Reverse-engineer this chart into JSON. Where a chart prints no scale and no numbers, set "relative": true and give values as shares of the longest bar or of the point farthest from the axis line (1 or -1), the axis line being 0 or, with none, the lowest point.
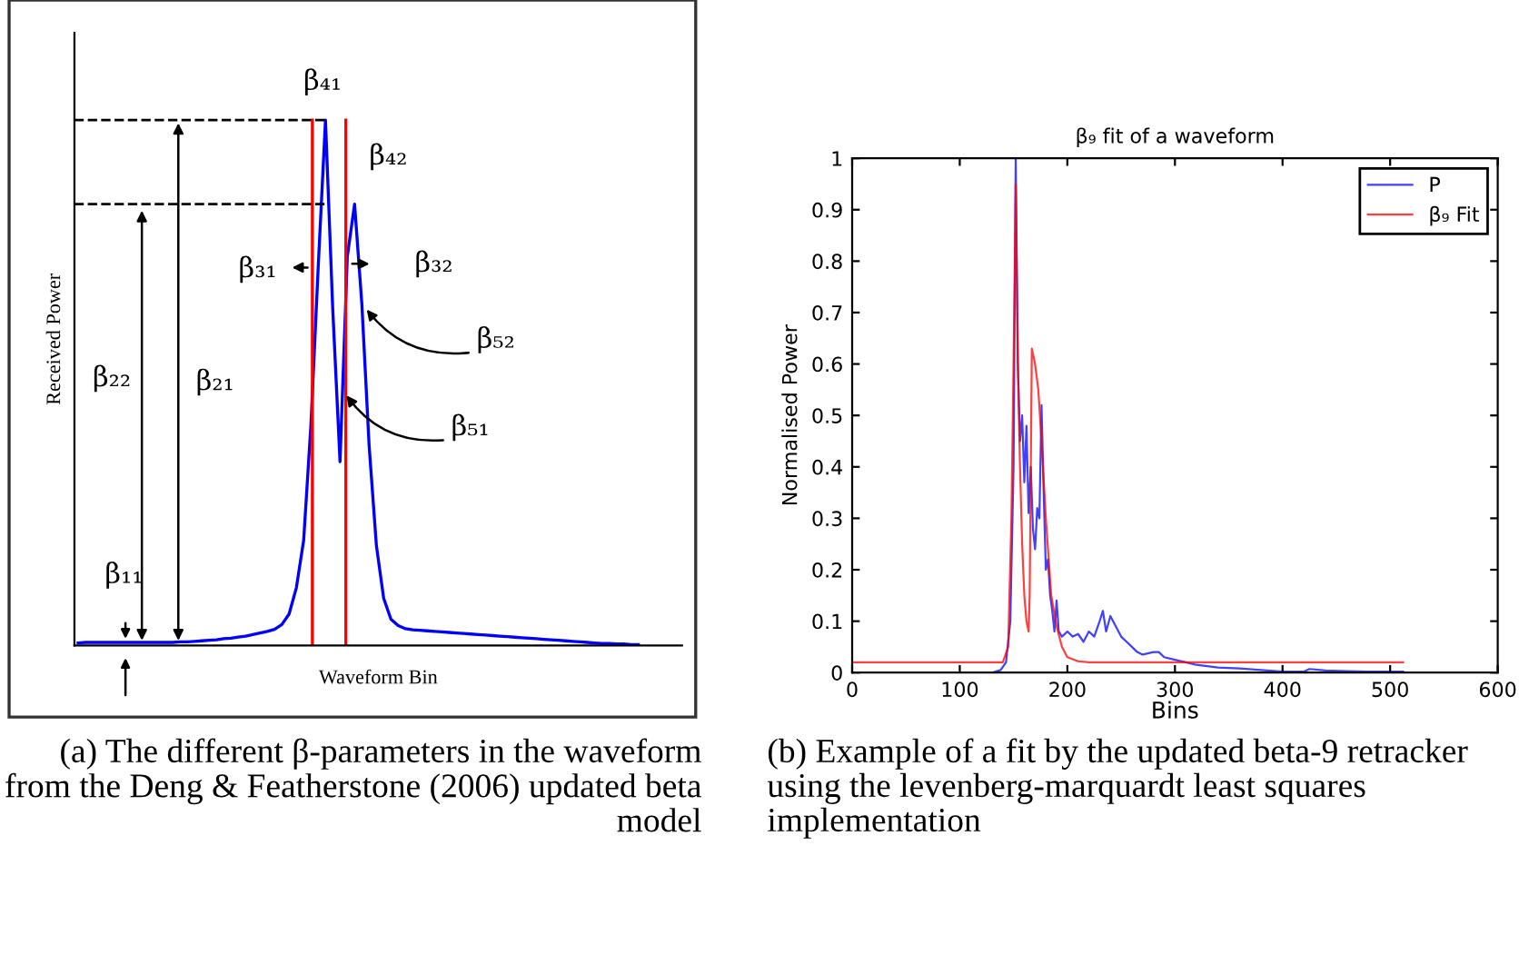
{
  "chart_data": [
    {
      "type": "line",
      "relative": true,
      "xlabel": "Waveform Bin",
      "ylabel": "Received Power",
      "color": "#0000ff",
      "grid": false,
      "categories": [
        null,
        null,
        null,
        null,
        null,
        null,
        null,
        null,
        null,
        null,
        null,
        null,
        null,
        null,
        null,
        null,
        null,
        null,
        null,
        null,
        null,
        null,
        null,
        null,
        null,
        null,
        null,
        null,
        null,
        null,
        null,
        null,
        null,
        null,
        null,
        null,
        null,
        null,
        null,
        null,
        null,
        null,
        null,
        null,
        null,
        null,
        null,
        null,
        null,
        null,
        null,
        null,
        null,
        null,
        null,
        null,
        null,
        null,
        null,
        null,
        null,
        null,
        null,
        null,
        null,
        null,
        null,
        null,
        null,
        null,
        null,
        null,
        null,
        null,
        null,
        null,
        null,
        null
      ],
      "values": [
        0.005,
        0.006,
        0.006,
        0.006,
        0.006,
        0.006,
        0.006,
        0.006,
        0.006,
        0.006,
        0.006,
        0.006,
        0.006,
        0.006,
        0.007,
        0.007,
        0.008,
        0.009,
        0.01,
        0.011,
        0.013,
        0.014,
        0.016,
        0.018,
        0.021,
        0.024,
        0.027,
        0.031,
        0.04,
        0.06,
        0.11,
        0.2,
        0.42,
        0.72,
        1.0,
        0.64,
        0.35,
        0.74,
        0.84,
        0.65,
        0.38,
        0.19,
        0.09,
        0.05,
        0.038,
        0.032,
        0.03,
        0.029,
        0.028,
        0.027,
        0.026,
        0.025,
        0.024,
        0.023,
        0.022,
        0.021,
        0.02,
        0.019,
        0.018,
        0.017,
        0.016,
        0.015,
        0.014,
        0.013,
        0.012,
        0.011,
        0.01,
        0.009,
        0.008,
        0.007,
        0.006,
        0.005,
        0.004,
        0.004,
        0.003,
        0.003,
        0.002,
        0.002
      ],
      "ref_lines": [
        {
          "axis": "y",
          "value": 1.0,
          "color": "#000000",
          "line_style": "dashed"
        },
        {
          "axis": "y",
          "value": 0.84,
          "color": "#000000",
          "line_style": "dashed"
        }
      ],
      "annotations": [
        "β₄₁",
        "β₄₂",
        "β₃₁",
        "β₃₂",
        "β₅₂",
        "β₅₁",
        "β₂₂",
        "β₂₁",
        "β₁₁",
        "(a) The different β-parameters in the waveform from the Deng & Featherstone (2006) updated beta model"
      ]
    },
    {
      "type": "line",
      "title": "β₉ fit of a waveform",
      "xlabel": "Bins",
      "ylabel": "Normalised Power",
      "grid": false,
      "legend": "top right",
      "xlim": [
        0,
        600
      ],
      "xticks": [
        0,
        100,
        200,
        300,
        400,
        500,
        600
      ],
      "ylim": [
        0,
        1
      ],
      "yticks": [
        0,
        0.1,
        0.2,
        0.3,
        0.4,
        0.5,
        0.6,
        0.7,
        0.8,
        0.9,
        1
      ],
      "series": [
        {
          "name": "P",
          "color": "#0000ff",
          "x": [
            0,
            130,
            138,
            143,
            147,
            150,
            152,
            154,
            156,
            158,
            160,
            162,
            164,
            166,
            168,
            170,
            172,
            174,
            176,
            178,
            180,
            182,
            184,
            186,
            188,
            190,
            192,
            195,
            200,
            205,
            210,
            215,
            220,
            225,
            230,
            233,
            236,
            240,
            245,
            250,
            255,
            260,
            265,
            270,
            280,
            285,
            290,
            300,
            310,
            320,
            340,
            360,
            380,
            400,
            420,
            425,
            440,
            460,
            480,
            512
          ],
          "values": [
            0,
            0,
            0.005,
            0.02,
            0.1,
            0.4,
            1.0,
            0.6,
            0.45,
            0.5,
            0.37,
            0.48,
            0.31,
            0.4,
            0.28,
            0.24,
            0.32,
            0.3,
            0.52,
            0.35,
            0.2,
            0.22,
            0.15,
            0.12,
            0.08,
            0.14,
            0.08,
            0.07,
            0.08,
            0.07,
            0.075,
            0.06,
            0.08,
            0.07,
            0.1,
            0.12,
            0.08,
            0.11,
            0.09,
            0.07,
            0.06,
            0.05,
            0.04,
            0.035,
            0.04,
            0.04,
            0.03,
            0.025,
            0.02,
            0.015,
            0.01,
            0.008,
            0.005,
            0.002,
            0.002,
            0.007,
            0.004,
            0.003,
            0.002,
            0.002
          ]
        },
        {
          "name": "β₉ Fit",
          "color": "#ff0000",
          "x": [
            0,
            140,
            145,
            148,
            150,
            152,
            154,
            156,
            158,
            160,
            162,
            164,
            165,
            167,
            170,
            173,
            176,
            180,
            185,
            190,
            195,
            200,
            210,
            220,
            512
          ],
          "values": [
            0.02,
            0.02,
            0.05,
            0.3,
            0.6,
            0.95,
            0.6,
            0.4,
            0.25,
            0.15,
            0.1,
            0.08,
            0.15,
            0.63,
            0.6,
            0.55,
            0.45,
            0.3,
            0.15,
            0.09,
            0.05,
            0.03,
            0.022,
            0.02,
            0.02
          ]
        }
      ],
      "annotations": [
        "(b) Example of a fit by the updated beta-9 retracker using the levenberg-marquardt least squares implementation"
      ]
    }
  ]
}
